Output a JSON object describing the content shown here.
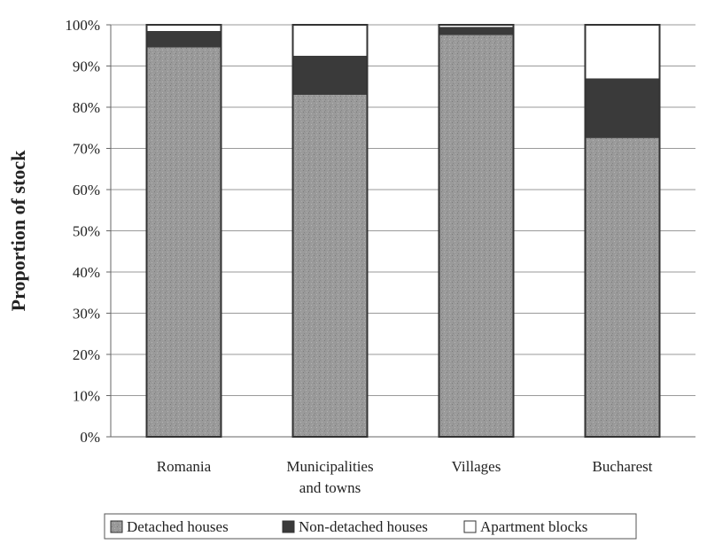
{
  "chart_data": {
    "type": "bar",
    "stacked": true,
    "categories": [
      "Romania",
      "Municipalities and towns",
      "Villages",
      "Bucharest"
    ],
    "category_lines": [
      [
        "Romania"
      ],
      [
        "Municipalities",
        "and towns"
      ],
      [
        "Villages"
      ],
      [
        "Bucharest"
      ]
    ],
    "series": [
      {
        "name": "Detached houses",
        "values": [
          94.5,
          83,
          97.5,
          72.5
        ],
        "color": "#9a9a9a"
      },
      {
        "name": "Non-detached houses",
        "values": [
          4,
          9.5,
          2,
          14.5
        ],
        "color": "#3a3a3a"
      },
      {
        "name": "Apartment blocks",
        "values": [
          1.5,
          7.5,
          0.5,
          13
        ],
        "color": "#ffffff"
      }
    ],
    "xlabel": "",
    "ylabel": "Proportion of stock",
    "ylim": [
      0,
      100
    ],
    "yticks": [
      0,
      10,
      20,
      30,
      40,
      50,
      60,
      70,
      80,
      90,
      100
    ],
    "ytick_labels": [
      "0%",
      "10%",
      "20%",
      "30%",
      "40%",
      "50%",
      "60%",
      "70%",
      "80%",
      "90%",
      "100%"
    ],
    "grid": true,
    "legend_position": "bottom"
  }
}
